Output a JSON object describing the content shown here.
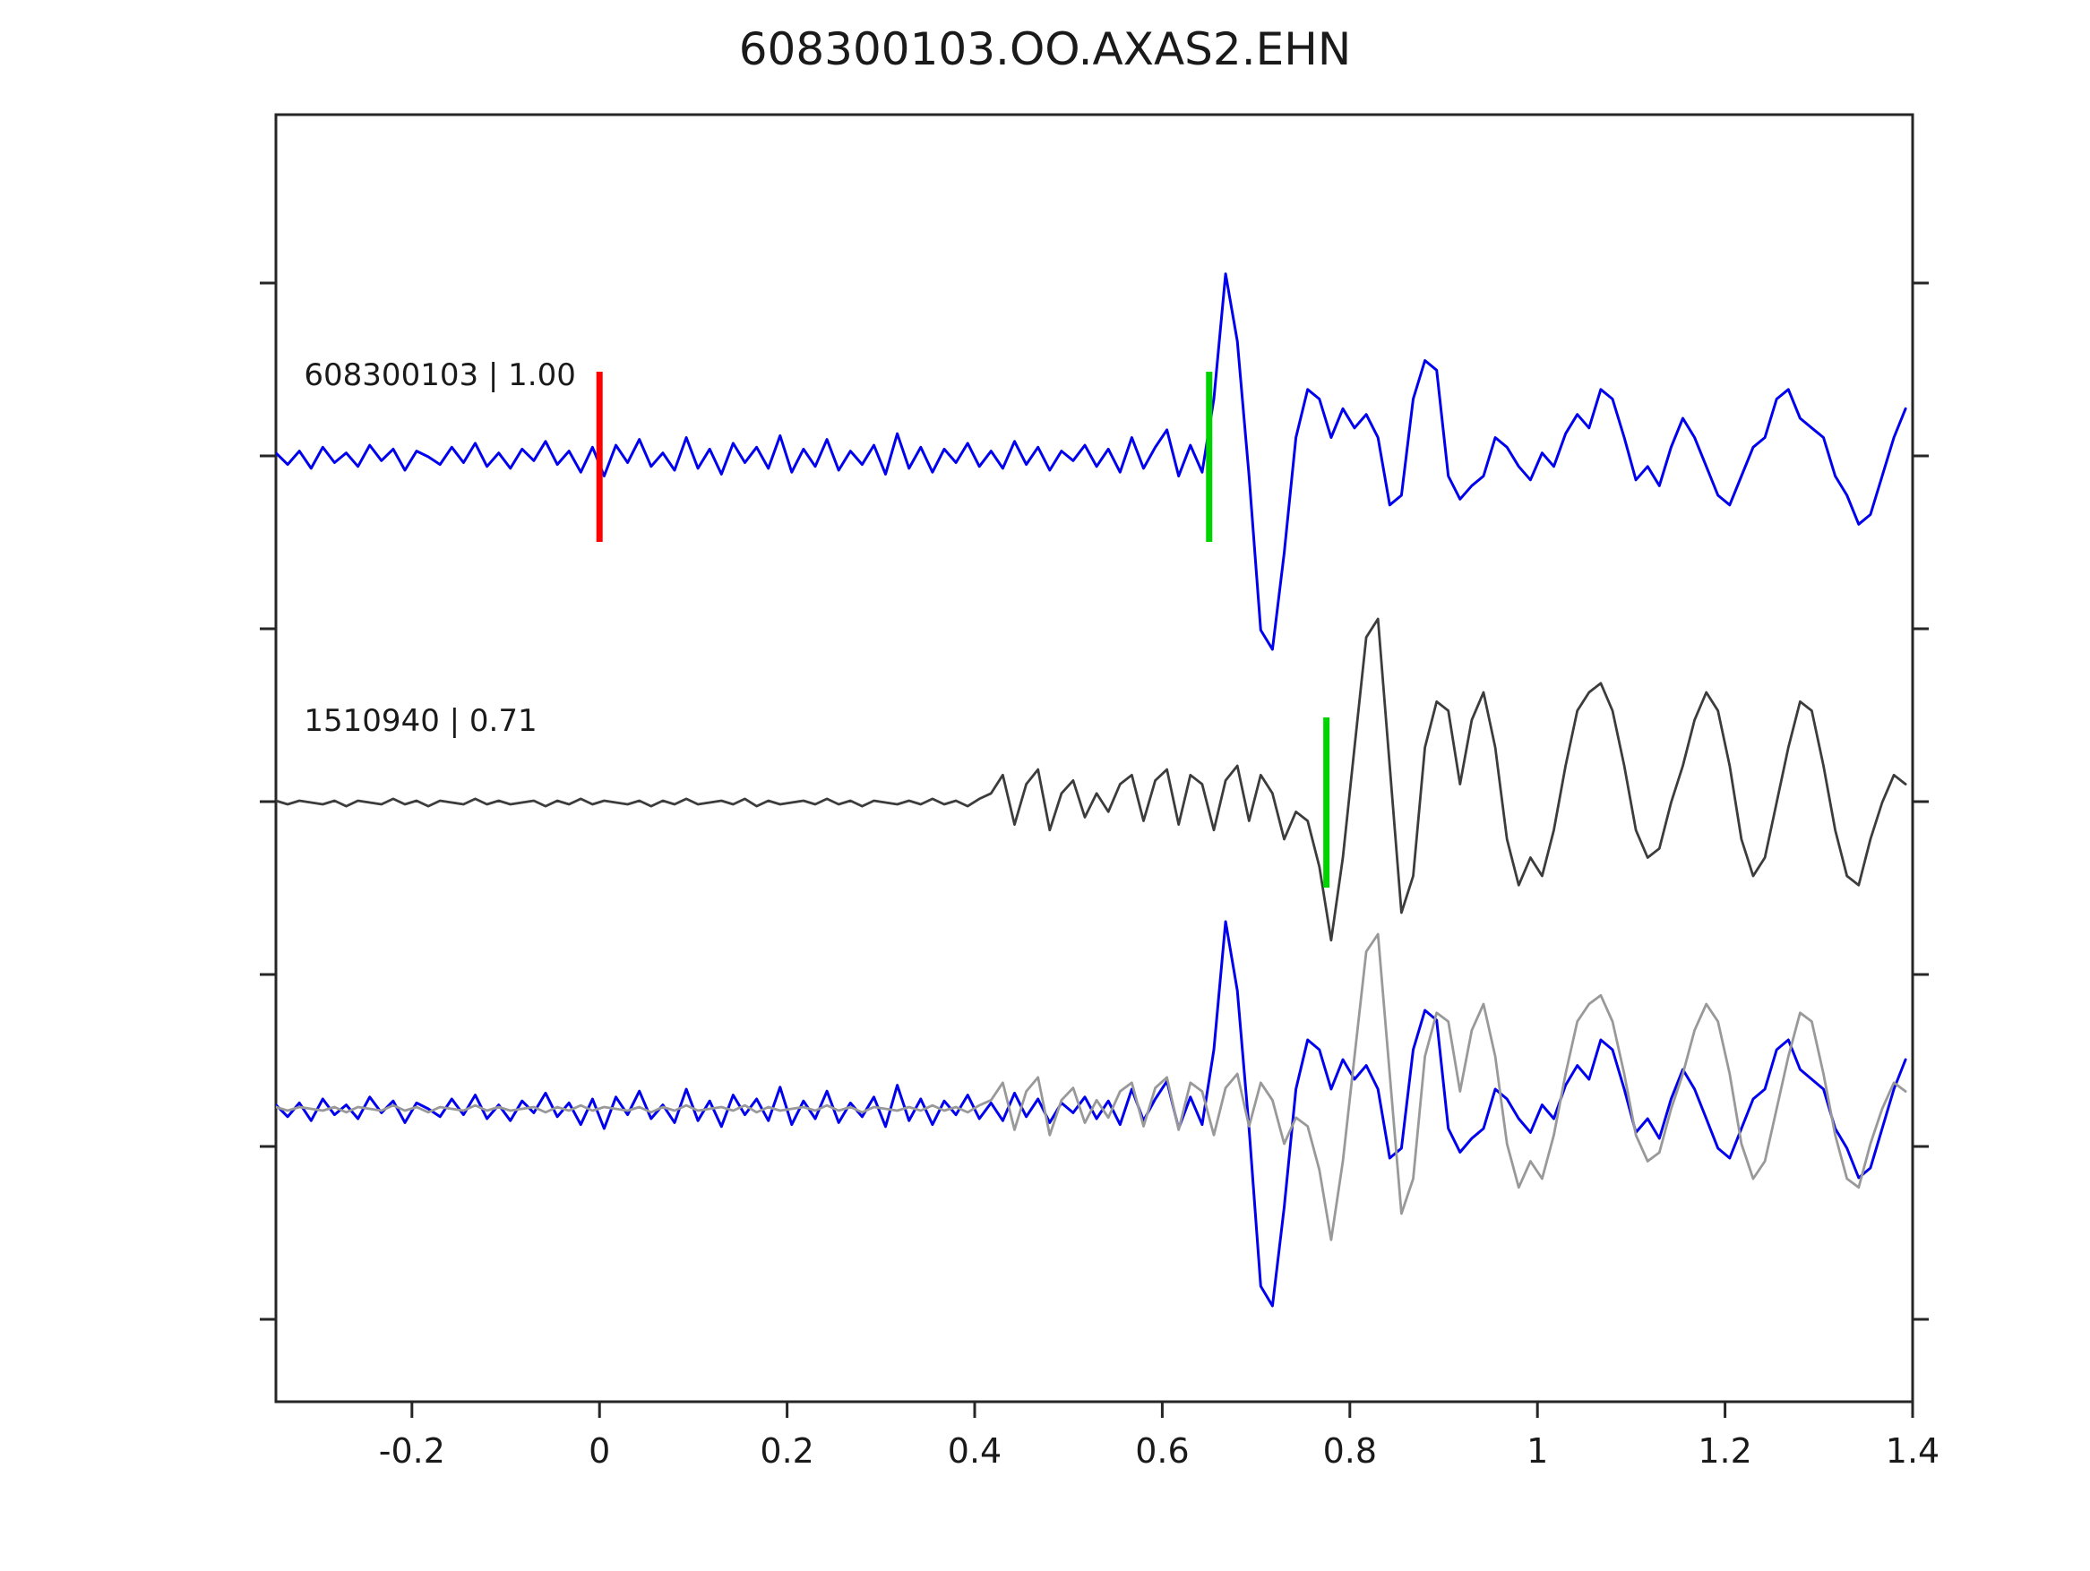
{
  "title": "608300103.OO.AXAS2.EHN",
  "chart_data": {
    "type": "line",
    "title": "608300103.OO.AXAS2.EHN",
    "xlabel": "",
    "ylabel": "",
    "xlim": [
      -0.345,
      1.4
    ],
    "grid": false,
    "legend": "none",
    "x_ticks": [
      {
        "value": -0.2,
        "label": "-0.2"
      },
      {
        "value": 0,
        "label": "0"
      },
      {
        "value": 0.2,
        "label": "0.2"
      },
      {
        "value": 0.4,
        "label": "0.4"
      },
      {
        "value": 0.6,
        "label": "0.6"
      },
      {
        "value": 0.8,
        "label": "0.8"
      },
      {
        "value": 1,
        "label": "1"
      },
      {
        "value": 1.2,
        "label": "1.2"
      },
      {
        "value": 1.4,
        "label": "1.4"
      }
    ],
    "traces": [
      {
        "name": "608300103",
        "label": "608300103 | 1.00",
        "score": "1.00",
        "color": "#0000ee",
        "row": 0,
        "x0": -0.345,
        "dx": 0.0125,
        "y": [
          0.02,
          -0.04,
          0.03,
          -0.06,
          0.05,
          -0.03,
          0.02,
          -0.05,
          0.06,
          -0.02,
          0.04,
          -0.07,
          0.03,
          0.0,
          -0.04,
          0.05,
          -0.03,
          0.07,
          -0.05,
          0.02,
          -0.06,
          0.04,
          -0.02,
          0.08,
          -0.04,
          0.03,
          -0.08,
          0.05,
          -0.1,
          0.06,
          -0.03,
          0.09,
          -0.05,
          0.02,
          -0.07,
          0.1,
          -0.06,
          0.04,
          -0.09,
          0.07,
          -0.03,
          0.05,
          -0.06,
          0.11,
          -0.08,
          0.04,
          -0.05,
          0.09,
          -0.07,
          0.03,
          -0.04,
          0.06,
          -0.09,
          0.12,
          -0.06,
          0.05,
          -0.08,
          0.04,
          -0.03,
          0.07,
          -0.05,
          0.03,
          -0.06,
          0.08,
          -0.04,
          0.05,
          -0.07,
          0.03,
          -0.02,
          0.06,
          -0.05,
          0.04,
          -0.08,
          0.1,
          -0.06,
          0.05,
          0.14,
          -0.1,
          0.06,
          -0.08,
          0.3,
          0.95,
          0.6,
          -0.1,
          -0.9,
          -1.0,
          -0.5,
          0.1,
          0.35,
          0.3,
          0.1,
          0.25,
          0.15,
          0.22,
          0.1,
          -0.25,
          -0.2,
          0.3,
          0.5,
          0.45,
          -0.1,
          -0.22,
          -0.15,
          -0.1,
          0.1,
          0.05,
          -0.05,
          -0.12,
          0.02,
          -0.05,
          0.12,
          0.22,
          0.15,
          0.35,
          0.3,
          0.1,
          -0.12,
          -0.05,
          -0.15,
          0.05,
          0.2,
          0.1,
          -0.05,
          -0.2,
          -0.25,
          -0.1,
          0.05,
          0.1,
          0.3,
          0.35,
          0.2,
          0.15,
          0.1,
          -0.1,
          -0.2,
          -0.35,
          -0.3,
          -0.1,
          0.1,
          0.25
        ]
      },
      {
        "name": "1510940",
        "label": "1510940 | 0.71",
        "score": "0.71",
        "color": "#3c3c3c",
        "row": 1,
        "x0": -0.345,
        "dx": 0.0125,
        "y": [
          0.01,
          -0.01,
          0.01,
          0.0,
          -0.01,
          0.01,
          -0.02,
          0.01,
          0.0,
          -0.01,
          0.02,
          -0.01,
          0.01,
          -0.02,
          0.01,
          0.0,
          -0.01,
          0.02,
          -0.01,
          0.01,
          -0.01,
          0.0,
          0.01,
          -0.02,
          0.01,
          -0.01,
          0.02,
          -0.01,
          0.01,
          0.0,
          -0.01,
          0.01,
          -0.02,
          0.01,
          -0.01,
          0.02,
          -0.01,
          0.0,
          0.01,
          -0.01,
          0.02,
          -0.02,
          0.01,
          -0.01,
          0.0,
          0.01,
          -0.01,
          0.02,
          -0.01,
          0.01,
          -0.02,
          0.01,
          0.0,
          -0.01,
          0.01,
          -0.01,
          0.02,
          -0.01,
          0.01,
          -0.02,
          0.02,
          0.05,
          0.15,
          -0.12,
          0.1,
          0.18,
          -0.15,
          0.05,
          0.12,
          -0.08,
          0.05,
          -0.05,
          0.1,
          0.15,
          -0.1,
          0.12,
          0.18,
          -0.12,
          0.15,
          0.1,
          -0.15,
          0.12,
          0.2,
          -0.1,
          0.15,
          0.05,
          -0.2,
          -0.05,
          -0.1,
          -0.35,
          -0.75,
          -0.3,
          0.3,
          0.9,
          1.0,
          0.2,
          -0.6,
          -0.4,
          0.3,
          0.55,
          0.5,
          0.1,
          0.45,
          0.6,
          0.3,
          -0.2,
          -0.45,
          -0.3,
          -0.4,
          -0.15,
          0.2,
          0.5,
          0.6,
          0.65,
          0.5,
          0.2,
          -0.15,
          -0.3,
          -0.25,
          0.0,
          0.2,
          0.45,
          0.6,
          0.5,
          0.2,
          -0.2,
          -0.4,
          -0.3,
          0.0,
          0.3,
          0.55,
          0.5,
          0.2,
          -0.15,
          -0.4,
          -0.45,
          -0.2,
          0.0,
          0.15,
          0.1
        ]
      },
      {
        "name": "overlay-608300103",
        "label": "",
        "color": "#0000ee",
        "row": 2,
        "y_ref": 0
      },
      {
        "name": "overlay-1510940",
        "label": "",
        "color": "#999999",
        "row": 2,
        "y_ref": 1
      }
    ],
    "markers": [
      {
        "trace": "608300103",
        "row": 0,
        "x": 0.0,
        "color": "#ff0000",
        "kind": "reference-pick"
      },
      {
        "trace": "608300103",
        "row": 0,
        "x": 0.65,
        "color": "#00d400",
        "kind": "correlation-pick"
      },
      {
        "trace": "1510940",
        "row": 1,
        "x": 0.775,
        "color": "#00d400",
        "kind": "correlation-pick"
      }
    ]
  }
}
